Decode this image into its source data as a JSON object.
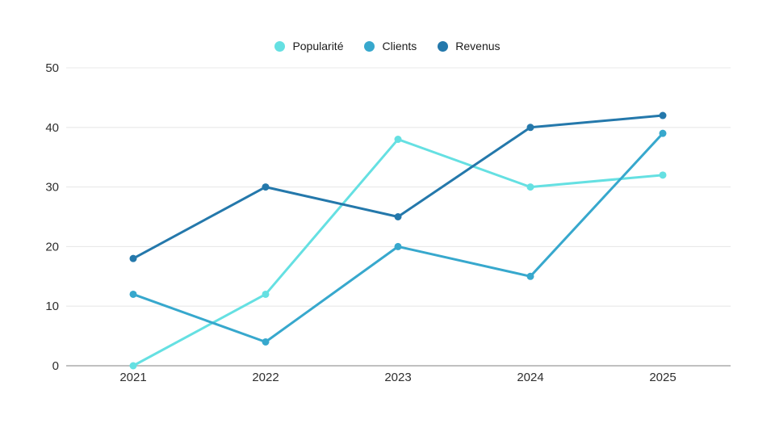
{
  "chart_data": {
    "type": "line",
    "title": "",
    "xlabel": "",
    "ylabel": "",
    "categories": [
      "2021",
      "2022",
      "2023",
      "2024",
      "2025"
    ],
    "series": [
      {
        "name": "Popularité",
        "slug": "popularite",
        "color": "#65e0e2",
        "values": [
          0,
          12,
          38,
          30,
          32
        ]
      },
      {
        "name": "Clients",
        "slug": "clients",
        "color": "#37a8cd",
        "values": [
          12,
          4,
          20,
          15,
          39
        ]
      },
      {
        "name": "Revenus",
        "slug": "revenus",
        "color": "#2478ab",
        "values": [
          18,
          30,
          25,
          40,
          42
        ]
      }
    ],
    "ylim": [
      0,
      50
    ],
    "y_ticks": [
      0,
      10,
      20,
      30,
      40,
      50
    ],
    "grid": true,
    "legend_position": "top"
  },
  "colors": {
    "background": "#ffffff",
    "gridline": "#e9e9e9",
    "axis_line": "#9a9a9a",
    "tick_text": "#2e2e2e",
    "legend_text": "#1c1c1c"
  }
}
